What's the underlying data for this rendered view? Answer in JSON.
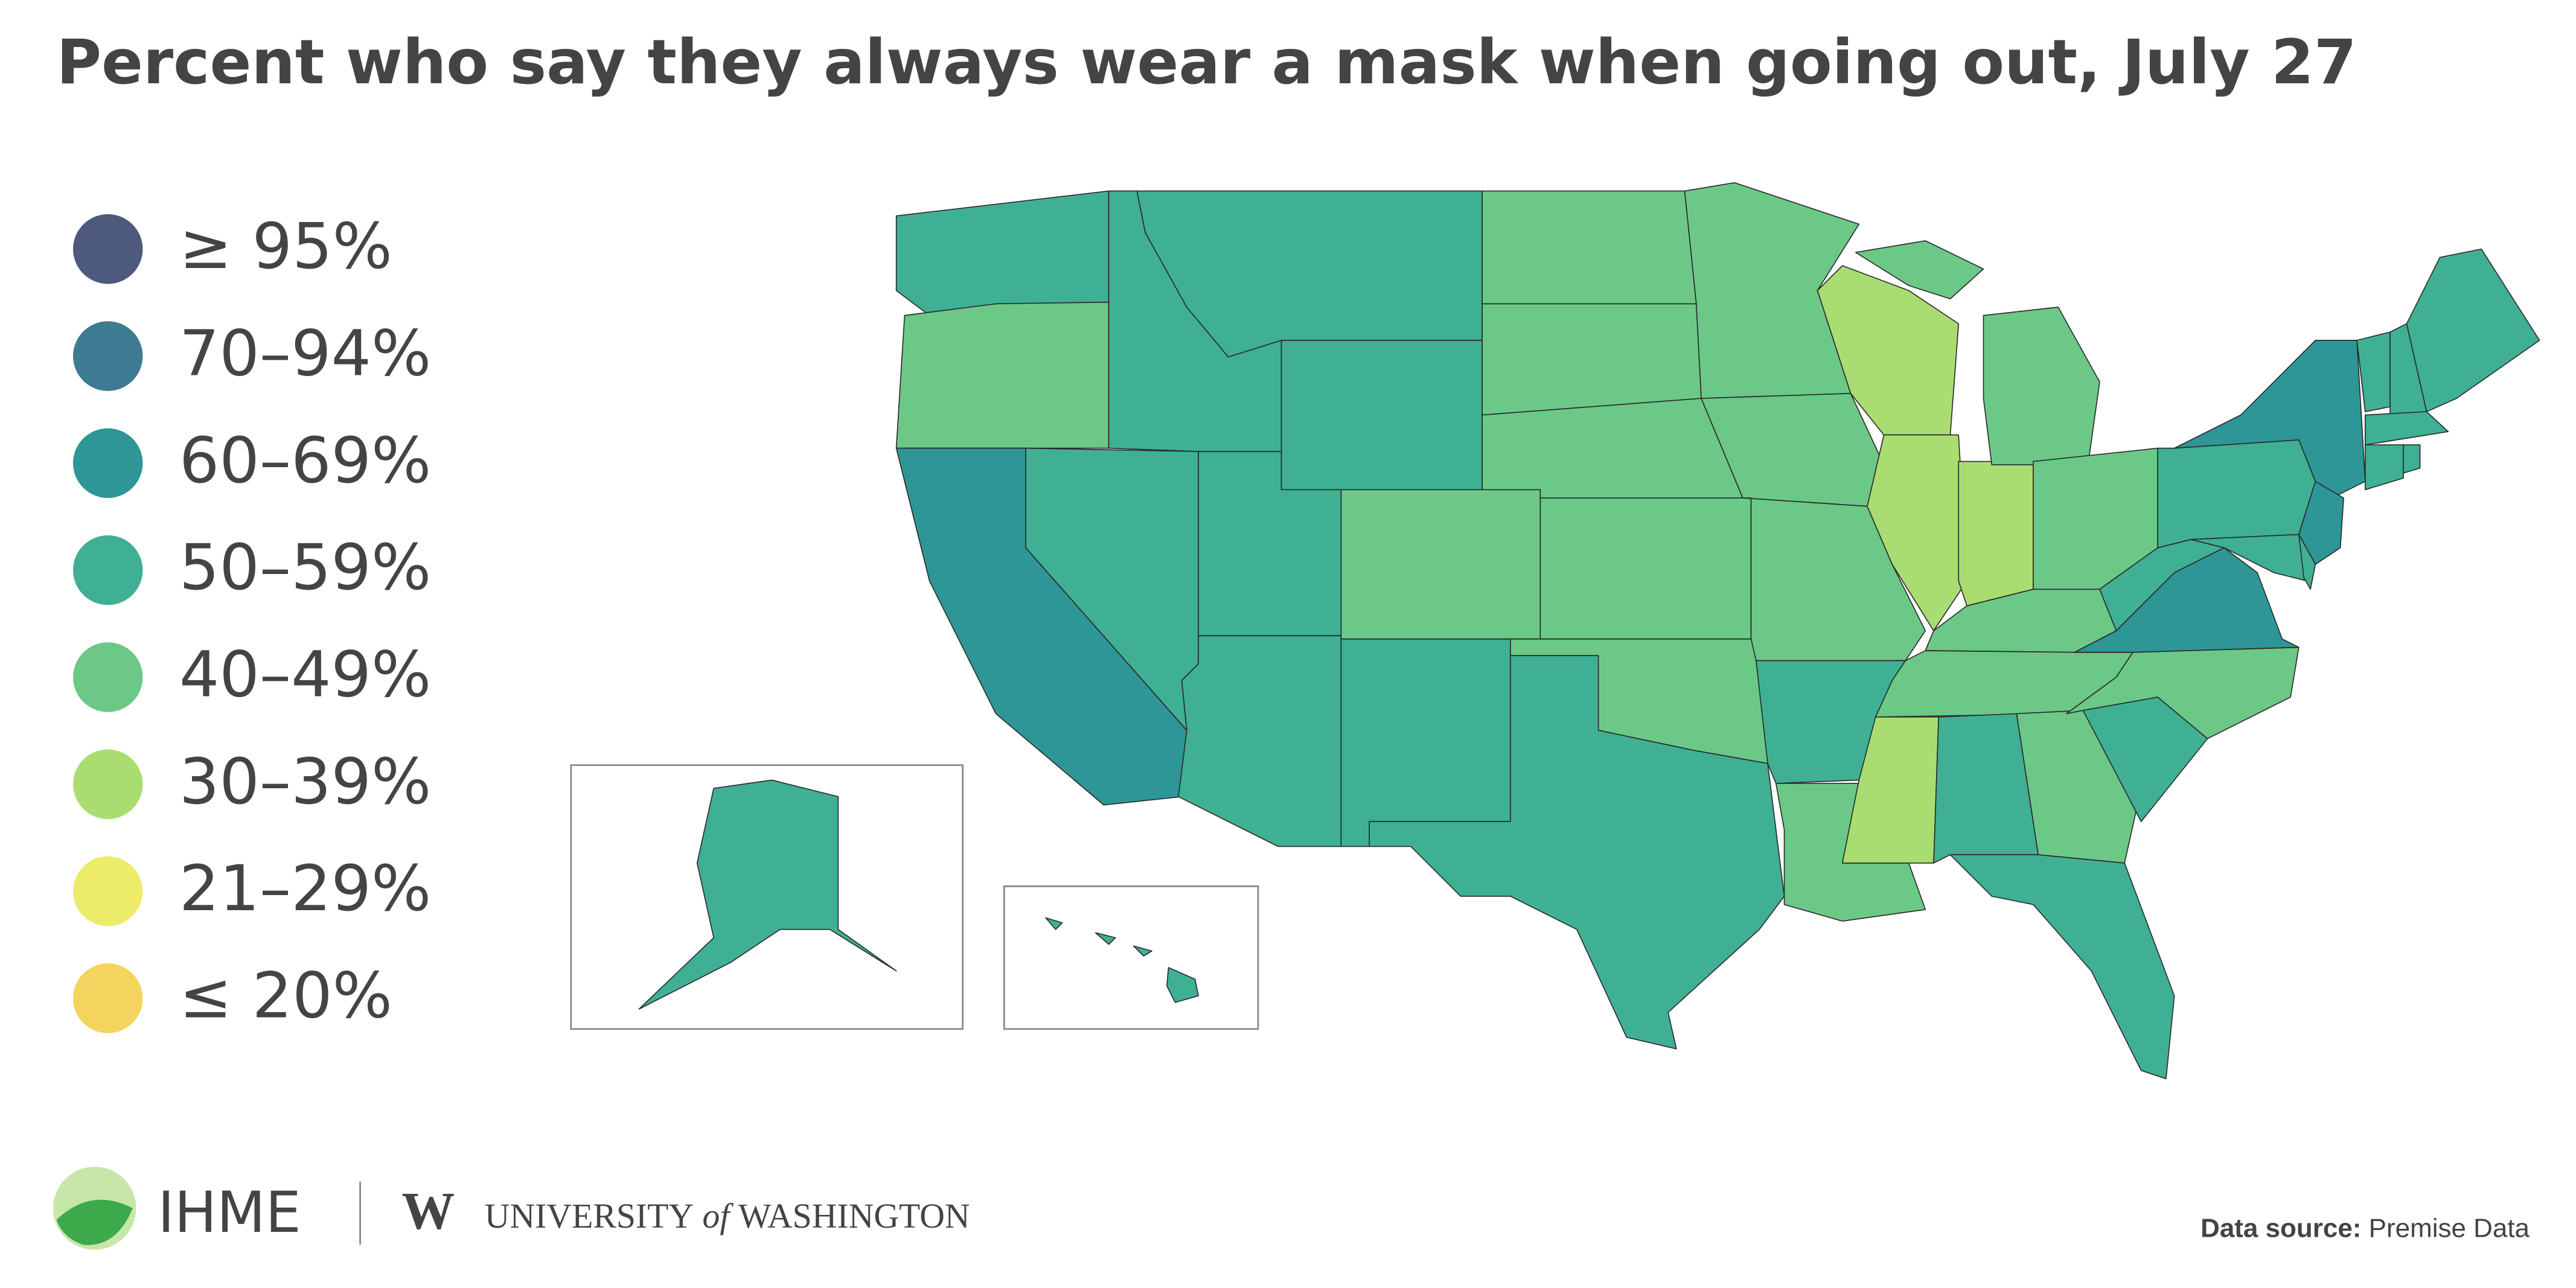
{
  "title": "Percent who say they always wear a mask when going out, July 27",
  "legend": [
    {
      "label": "≥ 95%",
      "color": "#4d5a7d"
    },
    {
      "label": "70–94%",
      "color": "#3d7b92"
    },
    {
      "label": "60–69%",
      "color": "#2e9696"
    },
    {
      "label": "50–59%",
      "color": "#3fb094"
    },
    {
      "label": "40–49%",
      "color": "#6cc887"
    },
    {
      "label": "30–39%",
      "color": "#a9dd72"
    },
    {
      "label": "21–29%",
      "color": "#ecec6a"
    },
    {
      "label": "≤ 20%",
      "color": "#f4d35e"
    }
  ],
  "map": {
    "regions": [
      3,
      4,
      2,
      3,
      3,
      3,
      3,
      3,
      3,
      4,
      3,
      4,
      4,
      4,
      4,
      4,
      3,
      4,
      4,
      4,
      3,
      4,
      5,
      5,
      5,
      4,
      4,
      4,
      4,
      5,
      3,
      4,
      3,
      3,
      4,
      2,
      3,
      3,
      2,
      2,
      3,
      3,
      3,
      3,
      3,
      3,
      3,
      3,
      3
    ]
  },
  "footer": {
    "org": "IHME",
    "university": [
      "UNIVERSITY",
      "of",
      "WASHINGTON"
    ],
    "source_label": "Data source:",
    "source": "Premise Data"
  }
}
